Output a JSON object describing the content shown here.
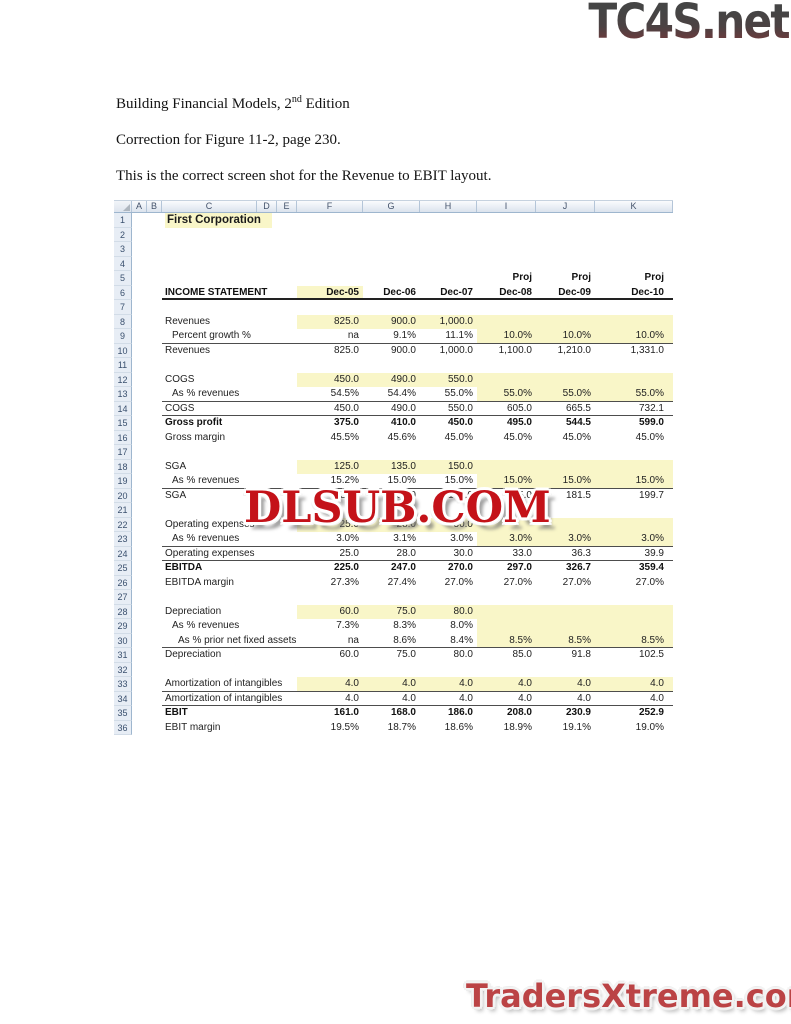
{
  "watermarks": {
    "top_right": "TC4S.net",
    "center": "DLSUB.COM",
    "bottom_right": "TradersXtreme.com"
  },
  "intro": {
    "title": {
      "prefix": "Building Financial Models, 2",
      "sup": "nd",
      "suffix": " Edition"
    },
    "correction": "Correction for Figure 11-2, page 230.",
    "note": "This is the correct screen shot for the Revenue to EBIT layout."
  },
  "colors": {
    "input_highlight": "#f9f6c8",
    "watermark_red": "#c41219",
    "logo_gray": "#474747",
    "header_text_blue": "#44536b"
  },
  "spreadsheet": {
    "column_headers": [
      "A",
      "B",
      "C",
      "D",
      "E",
      "F",
      "G",
      "H",
      "I",
      "J",
      "K"
    ],
    "value_columns": [
      "F",
      "G",
      "H",
      "I",
      "J",
      "K"
    ],
    "row_count": 36,
    "rows": [
      {
        "n": 1,
        "label": "First Corporation",
        "bold": true,
        "label_yellow": true,
        "title": true
      },
      {
        "n": 5,
        "cells": [
          "",
          "",
          "",
          "Proj",
          "Proj",
          "Proj"
        ],
        "bold": true
      },
      {
        "n": 6,
        "label": "INCOME STATEMENT",
        "bold": true,
        "cells": [
          "Dec-05",
          "Dec-06",
          "Dec-07",
          "Dec-08",
          "Dec-09",
          "Dec-10"
        ],
        "yellow": "F",
        "border": "thick"
      },
      {
        "n": 8,
        "label": "Revenues",
        "cells": [
          "825.0",
          "900.0",
          "1,000.0",
          "",
          "",
          ""
        ],
        "yellow": "FK"
      },
      {
        "n": 9,
        "label": "Percent growth %",
        "indent": 1,
        "cells": [
          "na",
          "9.1%",
          "11.1%",
          "10.0%",
          "10.0%",
          "10.0%"
        ],
        "yellow": "IK",
        "border": "thin"
      },
      {
        "n": 10,
        "label": "Revenues",
        "cells": [
          "825.0",
          "900.0",
          "1,000.0",
          "1,100.0",
          "1,210.0",
          "1,331.0"
        ]
      },
      {
        "n": 12,
        "label": "COGS",
        "cells": [
          "450.0",
          "490.0",
          "550.0",
          "",
          "",
          ""
        ],
        "yellow": "FK"
      },
      {
        "n": 13,
        "label": "As % revenues",
        "indent": 1,
        "cells": [
          "54.5%",
          "54.4%",
          "55.0%",
          "55.0%",
          "55.0%",
          "55.0%"
        ],
        "yellow": "IK",
        "border": "thin"
      },
      {
        "n": 14,
        "label": "COGS",
        "cells": [
          "450.0",
          "490.0",
          "550.0",
          "605.0",
          "665.5",
          "732.1"
        ],
        "border": "thin"
      },
      {
        "n": 15,
        "label": "Gross profit",
        "bold": true,
        "cells": [
          "375.0",
          "410.0",
          "450.0",
          "495.0",
          "544.5",
          "599.0"
        ]
      },
      {
        "n": 16,
        "label": "Gross margin",
        "cells": [
          "45.5%",
          "45.6%",
          "45.0%",
          "45.0%",
          "45.0%",
          "45.0%"
        ]
      },
      {
        "n": 18,
        "label": "SGA",
        "cells": [
          "125.0",
          "135.0",
          "150.0",
          "",
          "",
          ""
        ],
        "yellow": "FK"
      },
      {
        "n": 19,
        "label": "As % revenues",
        "indent": 1,
        "cells": [
          "15.2%",
          "15.0%",
          "15.0%",
          "15.0%",
          "15.0%",
          "15.0%"
        ],
        "yellow": "IK",
        "border": "thin"
      },
      {
        "n": 20,
        "label": "SGA",
        "cells": [
          "125.0",
          "135.0",
          "150.0",
          "165.0",
          "181.5",
          "199.7"
        ]
      },
      {
        "n": 22,
        "label": "Operating expenses",
        "cells": [
          "25.0",
          "28.0",
          "30.0",
          "",
          "",
          ""
        ],
        "yellow": "FK"
      },
      {
        "n": 23,
        "label": "As % revenues",
        "indent": 1,
        "cells": [
          "3.0%",
          "3.1%",
          "3.0%",
          "3.0%",
          "3.0%",
          "3.0%"
        ],
        "yellow": "IK",
        "border": "thin"
      },
      {
        "n": 24,
        "label": "Operating expenses",
        "cells": [
          "25.0",
          "28.0",
          "30.0",
          "33.0",
          "36.3",
          "39.9"
        ],
        "border": "thin"
      },
      {
        "n": 25,
        "label": "EBITDA",
        "bold": true,
        "cells": [
          "225.0",
          "247.0",
          "270.0",
          "297.0",
          "326.7",
          "359.4"
        ]
      },
      {
        "n": 26,
        "label": "EBITDA margin",
        "cells": [
          "27.3%",
          "27.4%",
          "27.0%",
          "27.0%",
          "27.0%",
          "27.0%"
        ]
      },
      {
        "n": 28,
        "label": "Depreciation",
        "cells": [
          "60.0",
          "75.0",
          "80.0",
          "",
          "",
          ""
        ],
        "yellow": "FK"
      },
      {
        "n": 29,
        "label": "As % revenues",
        "indent": 1,
        "cells": [
          "7.3%",
          "8.3%",
          "8.0%",
          "",
          "",
          ""
        ],
        "yellow": "IK"
      },
      {
        "n": 30,
        "label": "As % prior net fixed assets",
        "indent": 2,
        "cells": [
          "na",
          "8.6%",
          "8.4%",
          "8.5%",
          "8.5%",
          "8.5%"
        ],
        "yellow": "IK",
        "border": "thin"
      },
      {
        "n": 31,
        "label": "Depreciation",
        "cells": [
          "60.0",
          "75.0",
          "80.0",
          "85.0",
          "91.8",
          "102.5"
        ]
      },
      {
        "n": 33,
        "label": "Amortization of intangibles",
        "cells": [
          "4.0",
          "4.0",
          "4.0",
          "4.0",
          "4.0",
          "4.0"
        ],
        "yellow": "FK",
        "border": "thin"
      },
      {
        "n": 34,
        "label": "Amortization of intangibles",
        "cells": [
          "4.0",
          "4.0",
          "4.0",
          "4.0",
          "4.0",
          "4.0"
        ],
        "border": "thin"
      },
      {
        "n": 35,
        "label": "EBIT",
        "bold": true,
        "cells": [
          "161.0",
          "168.0",
          "186.0",
          "208.0",
          "230.9",
          "252.9"
        ]
      },
      {
        "n": 36,
        "label": "EBIT margin",
        "cells": [
          "19.5%",
          "18.7%",
          "18.6%",
          "18.9%",
          "19.1%",
          "19.0%"
        ]
      }
    ]
  }
}
